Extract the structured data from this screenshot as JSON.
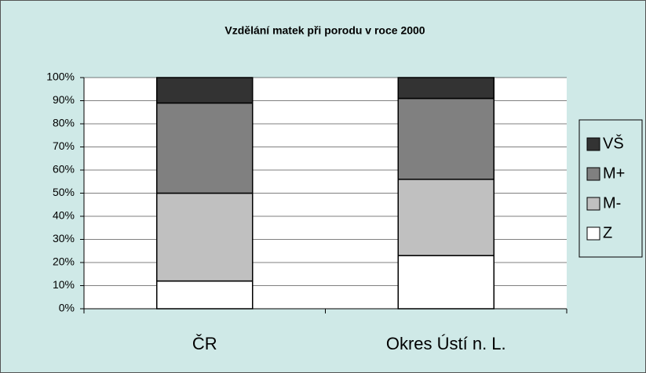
{
  "chart_data": {
    "type": "stacked_bar",
    "title": "Vzdělání matek při porodu v roce 2000",
    "categories": [
      "ČR",
      "Okres Ústí n. L."
    ],
    "series": [
      {
        "name": "Z",
        "color": "#ffffff",
        "values": [
          12,
          23
        ]
      },
      {
        "name": "M-",
        "color": "#c0c0c0",
        "values": [
          38,
          33
        ]
      },
      {
        "name": "M+",
        "color": "#808080",
        "values": [
          39,
          35
        ]
      },
      {
        "name": "VŠ",
        "color": "#333333",
        "values": [
          11,
          9
        ]
      }
    ],
    "ylim": [
      0,
      100
    ],
    "yticks": [
      {
        "value": 0,
        "label": "0%"
      },
      {
        "value": 10,
        "label": "10%"
      },
      {
        "value": 20,
        "label": "20%"
      },
      {
        "value": 30,
        "label": "30%"
      },
      {
        "value": 40,
        "label": "40%"
      },
      {
        "value": 50,
        "label": "50%"
      },
      {
        "value": 60,
        "label": "60%"
      },
      {
        "value": 70,
        "label": "70%"
      },
      {
        "value": 80,
        "label": "80%"
      },
      {
        "value": 90,
        "label": "90%"
      },
      {
        "value": 100,
        "label": "100%"
      }
    ],
    "grid": true,
    "legend": "right"
  }
}
